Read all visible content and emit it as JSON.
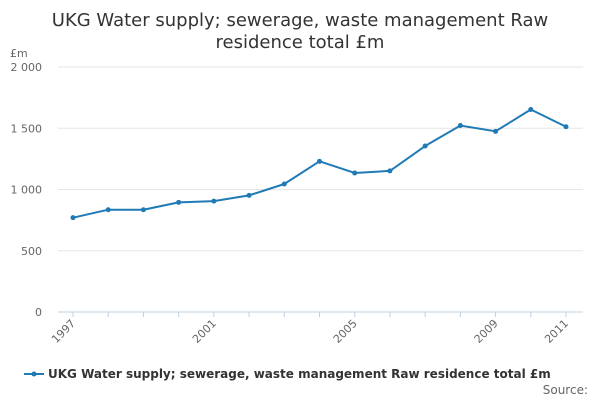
{
  "chart_data": {
    "type": "line",
    "title_lines": [
      "UKG Water supply; sewerage, waste management Raw",
      "residence total £m"
    ],
    "ylabel": "£m",
    "ylim": [
      0,
      2000
    ],
    "y_ticks": [
      {
        "value": 0,
        "label": "0"
      },
      {
        "value": 500,
        "label": "500"
      },
      {
        "value": 1000,
        "label": "1 000"
      },
      {
        "value": 1500,
        "label": "1 500"
      },
      {
        "value": 2000,
        "label": "2 000"
      }
    ],
    "x_tick_labels": [
      "1997",
      "2001",
      "2005",
      "2009",
      "2011"
    ],
    "x": [
      1997,
      1998,
      1999,
      2000,
      2001,
      2002,
      2003,
      2004,
      2005,
      2006,
      2007,
      2008,
      2009,
      2010,
      2011
    ],
    "series": [
      {
        "name": "UKG Water supply; sewerage, waste management Raw residence total £m",
        "color": "#1f7ab6",
        "values": [
          770,
          835,
          835,
          895,
          905,
          952,
          1045,
          1230,
          1135,
          1152,
          1355,
          1522,
          1475,
          1653,
          1512
        ]
      }
    ],
    "grid": true,
    "legend_position": "bottom"
  },
  "footer": {
    "source": "Source:"
  }
}
